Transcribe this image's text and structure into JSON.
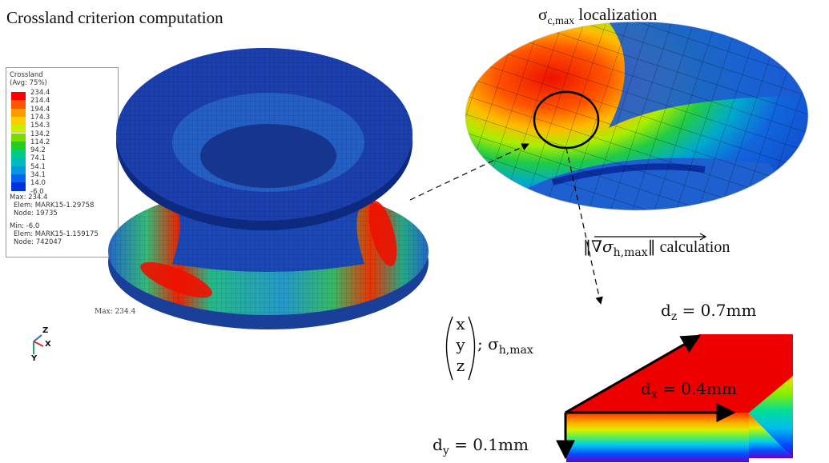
{
  "titles": {
    "left": "Crossland criterion computation",
    "right_sigma": "σ",
    "right_sub": "c,max",
    "right_rest": " localization"
  },
  "legend": {
    "title_line1": "Crossland",
    "title_line2": "(Avg: 75%)",
    "levels": [
      "234.4",
      "214.4",
      "194.4",
      "174.3",
      "154.3",
      "134.2",
      "114.2",
      "94.2",
      "74.1",
      "54.1",
      "34.1",
      "14.0",
      "-6.0"
    ],
    "colors": [
      "#ff0000",
      "#ff5500",
      "#ff9900",
      "#ffcc00",
      "#ccee00",
      "#77dd00",
      "#22cc22",
      "#00cc88",
      "#00bbbb",
      "#0099dd",
      "#0066ee",
      "#0033dd",
      "#0000cc"
    ],
    "max_label": "Max: 234.4",
    "max_elem": "Elem: MARK15-1.29758",
    "max_node": "Node: 19735",
    "min_label": "Min: -6.0",
    "min_elem": "Elem: MARK15-1.159175",
    "min_node": "Node: 742047"
  },
  "model": {
    "max_marker": "Max: 234.4"
  },
  "triad": {
    "z": "Z",
    "x": "X",
    "y": "Y"
  },
  "gradient_label": {
    "open": "‖",
    "nabla": "∇σ",
    "sub": "h,max",
    "close": "‖",
    "rest": " calculation"
  },
  "position_label": {
    "x": "x",
    "y": "y",
    "z": "z",
    "sep": "; σ",
    "sub": "h,max"
  },
  "dimensions": {
    "dz_base": "d",
    "dz_sub": "z",
    "dz_val": " = 0.7mm",
    "dx_base": "d",
    "dx_sub": "x",
    "dx_val": " = 0.4mm",
    "dy_base": "d",
    "dy_sub": "y",
    "dy_val": " = 0.1mm"
  }
}
